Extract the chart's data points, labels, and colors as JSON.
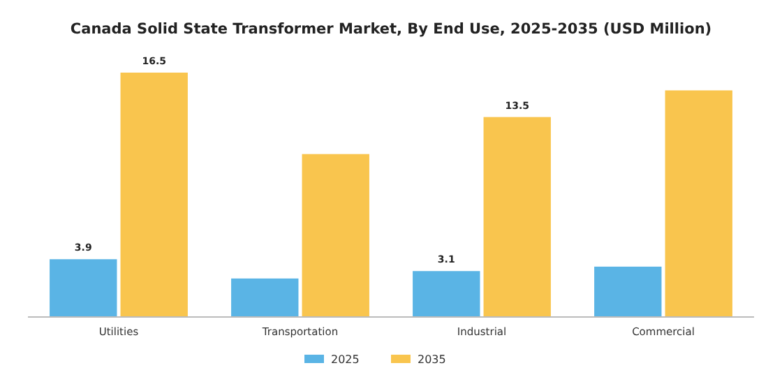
{
  "chart_data": {
    "type": "bar",
    "title": "Canada Solid State Transformer Market, By End Use, 2025-2035 (USD Million)",
    "categories": [
      "Utilities",
      "Transportation",
      "Industrial",
      "Commercial"
    ],
    "series": [
      {
        "name": "2025",
        "color": "#5ab4e5",
        "values": [
          3.9,
          2.6,
          3.1,
          3.4
        ],
        "value_labels": [
          "3.9",
          null,
          "3.1",
          null
        ]
      },
      {
        "name": "2035",
        "color": "#f9c54e",
        "values": [
          16.5,
          11.0,
          13.5,
          15.3
        ],
        "value_labels": [
          "16.5",
          null,
          "13.5",
          null
        ]
      }
    ],
    "tick_labels": "x",
    "legend": "bottom"
  }
}
